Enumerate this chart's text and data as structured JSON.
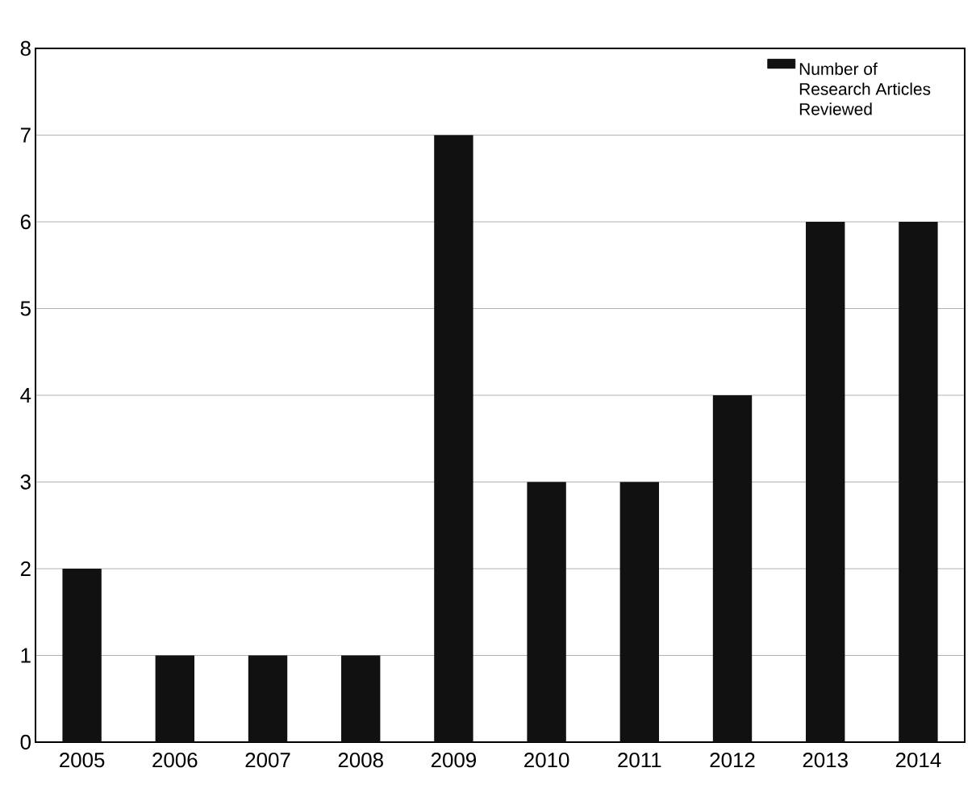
{
  "chart_data": {
    "type": "bar",
    "categories": [
      "2005",
      "2006",
      "2007",
      "2008",
      "2009",
      "2010",
      "2011",
      "2012",
      "2013",
      "2014"
    ],
    "series": [
      {
        "name": "Number of Research Articles Reviewed",
        "color": "#111111",
        "values": [
          2,
          1,
          1,
          1,
          7,
          3,
          3,
          4,
          6,
          6
        ]
      }
    ],
    "ylim": [
      0,
      8
    ],
    "yticks": [
      0,
      1,
      2,
      3,
      4,
      5,
      6,
      7,
      8
    ],
    "grid": "y",
    "legend": "top right"
  }
}
